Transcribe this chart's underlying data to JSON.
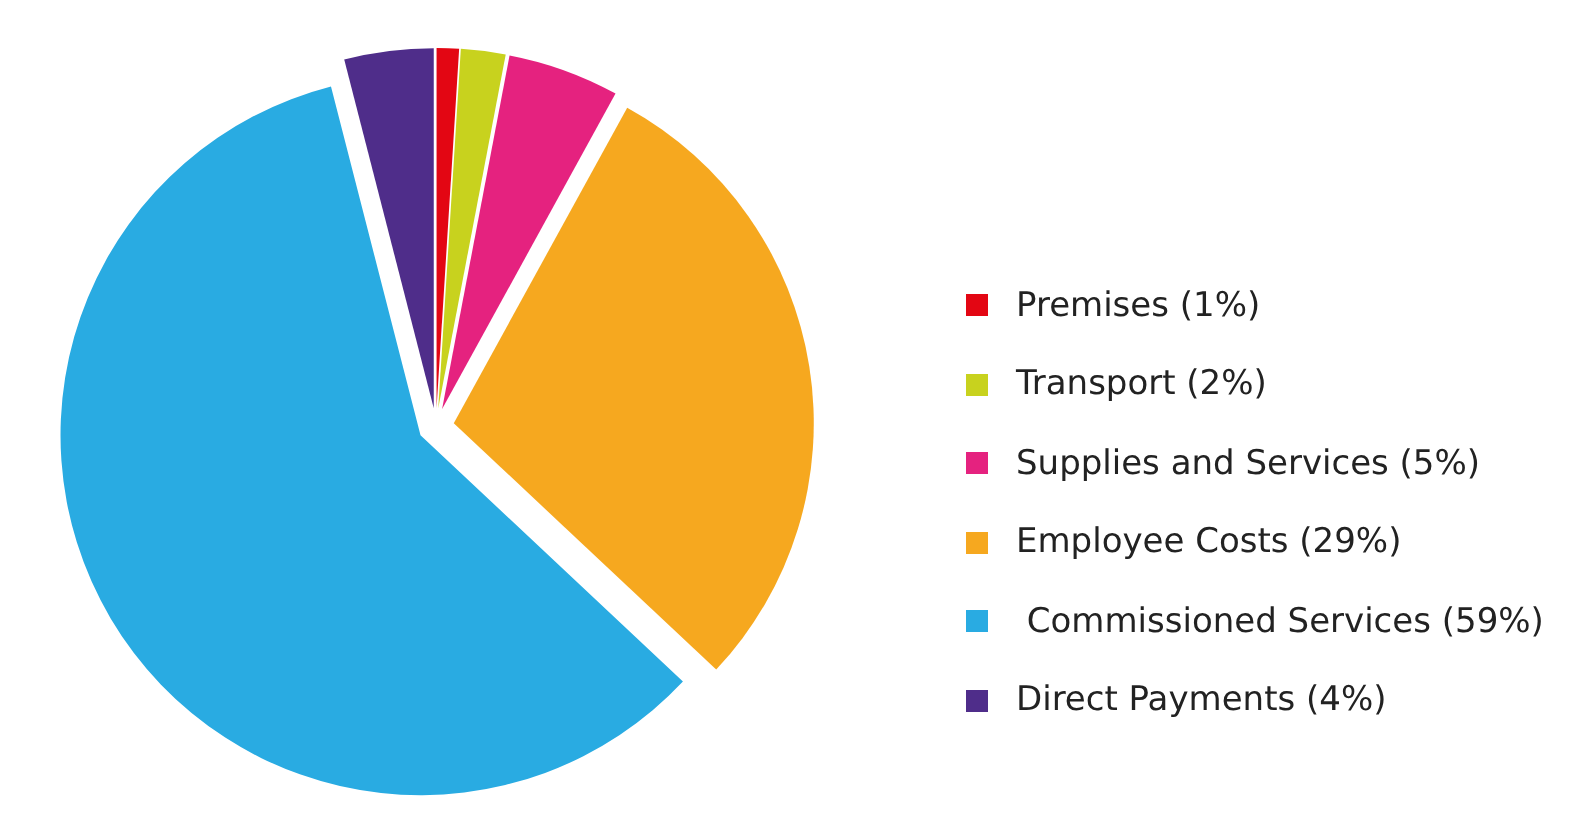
{
  "chart_data": {
    "type": "pie",
    "categories": [
      "Premises (1%)",
      "Transport (2%)",
      "Supplies and Services (5%)",
      "Employee Costs (29%)",
      " Commissioned Services (59%)",
      "Direct Payments (4%)"
    ],
    "values": [
      1,
      2,
      5,
      29,
      59,
      4
    ],
    "colors": [
      "#e30613",
      "#c8d21e",
      "#e5227f",
      "#f6a81f",
      "#29abe2",
      "#4f2d8a"
    ],
    "legend": "right"
  }
}
